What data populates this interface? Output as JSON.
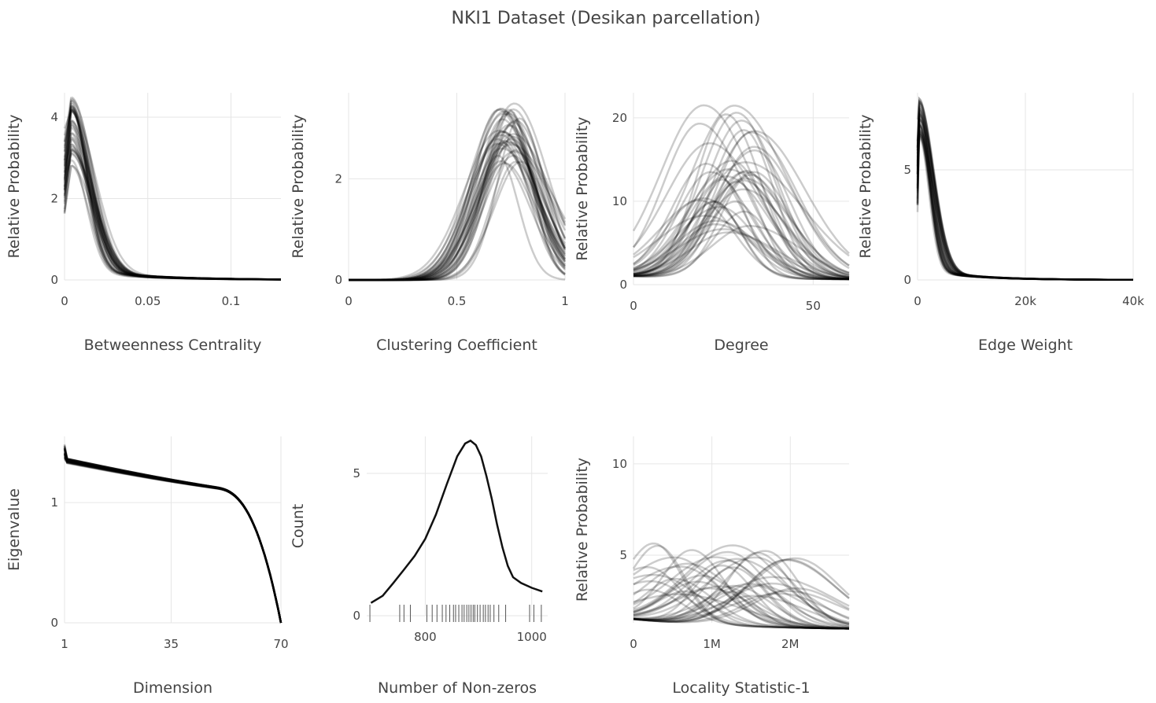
{
  "title": "NKI1 Dataset (Desikan parcellation)",
  "chart_data": [
    {
      "id": "betweenness",
      "type": "line",
      "style": "density-overlay",
      "xlabel": "Betweenness Centrality",
      "ylabel": "Relative Probability",
      "xlim": [
        0,
        0.13
      ],
      "ylim": [
        0,
        4.6
      ],
      "xticks": [
        0,
        0.05,
        0.1
      ],
      "xtick_labels": [
        "0",
        "0.05",
        "0.1"
      ],
      "yticks": [
        0,
        2,
        4
      ],
      "ytick_labels": [
        "0",
        "2",
        "4"
      ],
      "series_count": 40,
      "shape": {
        "kind": "decay",
        "x_start": 0,
        "x_end": 0.13,
        "peak_x": 0.004,
        "peak_y": [
          2.8,
          4.5
        ],
        "rise": 0.003,
        "fall": 0.011,
        "tail": 0.04
      }
    },
    {
      "id": "clustering",
      "type": "line",
      "style": "density-overlay",
      "xlabel": "Clustering Coefficient",
      "ylabel": "Relative Probability",
      "xlim": [
        0,
        1
      ],
      "ylim": [
        0,
        3.7
      ],
      "xticks": [
        0,
        0.5,
        1
      ],
      "xtick_labels": [
        "0",
        "0.5",
        "1"
      ],
      "yticks": [
        0,
        2
      ],
      "ytick_labels": [
        "0",
        "2"
      ],
      "series_count": 40,
      "shape": {
        "kind": "gauss",
        "x_start": 0,
        "x_end": 1,
        "peak_x": [
          0.68,
          0.8
        ],
        "peak_y": [
          2.3,
          3.5
        ],
        "width": [
          0.1,
          0.16
        ],
        "base": 0
      }
    },
    {
      "id": "degree",
      "type": "line",
      "style": "density-overlay",
      "xlabel": "Degree",
      "ylabel": "Relative Probability",
      "xlim": [
        0,
        60
      ],
      "ylim": [
        0,
        23
      ],
      "xticks": [
        0,
        50
      ],
      "xtick_labels": [
        "0",
        "50"
      ],
      "yticks": [
        0,
        10,
        20
      ],
      "ytick_labels": [
        "0",
        "10",
        "20"
      ],
      "series_count": 40,
      "shape": {
        "kind": "gauss",
        "x_start": 0,
        "x_end": 60,
        "peak_x": [
          18,
          34
        ],
        "peak_y": [
          6,
          22
        ],
        "width": [
          8,
          13
        ],
        "base": 1
      }
    },
    {
      "id": "edge_weight",
      "type": "line",
      "style": "density-overlay",
      "xlabel": "Edge Weight",
      "ylabel": "Relative Probability",
      "xlim": [
        0,
        40000
      ],
      "ylim": [
        0,
        8.5
      ],
      "xticks": [
        0,
        20000,
        40000
      ],
      "xtick_labels": [
        "0",
        "20k",
        "40k"
      ],
      "yticks": [
        0,
        5
      ],
      "ytick_labels": [
        "0",
        "5"
      ],
      "series_count": 40,
      "shape": {
        "kind": "decay",
        "x_start": 0,
        "x_end": 40000,
        "peak_x": 300,
        "peak_y": [
          6.5,
          8.3
        ],
        "rise": 300,
        "fall": 2200,
        "tail": 9000
      }
    },
    {
      "id": "eigenvalue",
      "type": "line",
      "style": "density-overlay",
      "xlabel": "Dimension",
      "ylabel": "Eigenvalue",
      "xlim": [
        1,
        70
      ],
      "ylim": [
        0,
        1.55
      ],
      "xticks": [
        1,
        35,
        70
      ],
      "xtick_labels": [
        "1",
        "35",
        "70"
      ],
      "yticks": [
        0,
        1
      ],
      "ytick_labels": [
        "0",
        "1"
      ],
      "series_count": 40,
      "shape": {
        "kind": "eigen",
        "x_start": 1,
        "x_end": 70,
        "start_y": 1.35,
        "mid_y": 1.0,
        "end_y": 0
      }
    },
    {
      "id": "nonzeros",
      "type": "line",
      "xlabel": "Number of Non-zeros",
      "ylabel": "Count",
      "xlim": [
        690,
        1030
      ],
      "ylim": [
        0,
        6.3
      ],
      "xticks": [
        800,
        1000
      ],
      "xtick_labels": [
        "800",
        "1000"
      ],
      "yticks": [
        0,
        5
      ],
      "ytick_labels": [
        "0",
        "5"
      ],
      "x": [
        698,
        720,
        740,
        760,
        780,
        800,
        820,
        840,
        860,
        875,
        885,
        895,
        905,
        915,
        925,
        935,
        945,
        955,
        965,
        980,
        1000,
        1020
      ],
      "y": [
        0.45,
        0.7,
        1.15,
        1.62,
        2.1,
        2.7,
        3.55,
        4.6,
        5.6,
        6.05,
        6.15,
        6.0,
        5.6,
        4.9,
        4.1,
        3.2,
        2.4,
        1.75,
        1.35,
        1.15,
        0.98,
        0.85
      ],
      "rug": [
        696,
        752,
        760,
        772,
        803,
        813,
        822,
        832,
        839,
        846,
        853,
        857,
        863,
        869,
        873,
        878,
        882,
        886,
        890,
        893,
        898,
        903,
        909,
        913,
        918,
        922,
        929,
        938,
        951,
        996,
        1004,
        1018
      ]
    },
    {
      "id": "locality",
      "type": "line",
      "style": "density-overlay",
      "xlabel": "Locality Statistic-1",
      "ylabel": "Relative Probability",
      "xlim": [
        0,
        2750000
      ],
      "ylim": [
        1.3,
        11.5
      ],
      "xticks": [
        0,
        1000000,
        2000000
      ],
      "xtick_labels": [
        "0",
        "1M",
        "2M"
      ],
      "yticks": [
        5,
        10
      ],
      "ytick_labels": [
        "5",
        "10"
      ],
      "series_count": 40,
      "shape": {
        "kind": "bump",
        "x_start": 0,
        "x_end": 2750000,
        "peak_x": [
          200000,
          2200000
        ],
        "peak_y": [
          3,
          6
        ],
        "width": [
          350000,
          650000
        ],
        "base": 1.5
      }
    }
  ],
  "colors": {
    "series": "#000000",
    "text": "#444444",
    "grid": "#e6e6e6"
  }
}
